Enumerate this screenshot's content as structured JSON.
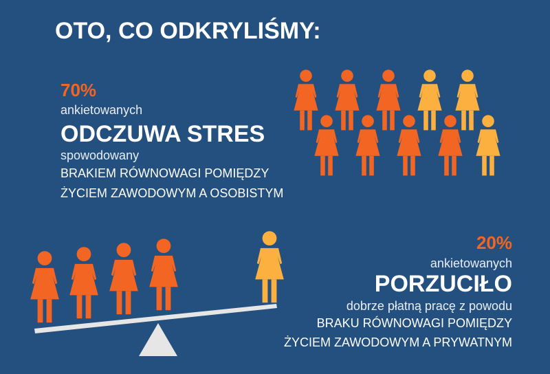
{
  "header": {
    "title": "OTO, CO ODKRYLIŚMY:"
  },
  "finding_1": {
    "percent": "70%",
    "line1": "ankietowanych",
    "headline": "ODCZUWA STRES",
    "line2": "spowodowany",
    "line3": "BRAKIEM RÓWNOWAGI POMIĘDZY",
    "line4": "ŻYCIEM ZAWODOWYM A OSOBISTYM"
  },
  "finding_2": {
    "percent": "20%",
    "line1": "ankietowanych",
    "headline": "PORZUCIŁO",
    "line2": "dobrze płatną pracę z powodu",
    "line3": "BRAKU RÓWNOWAGI POMIĘDZY",
    "line4": "ŻYCIEM ZAWODOWYM A PRYWATNYM"
  }
}
